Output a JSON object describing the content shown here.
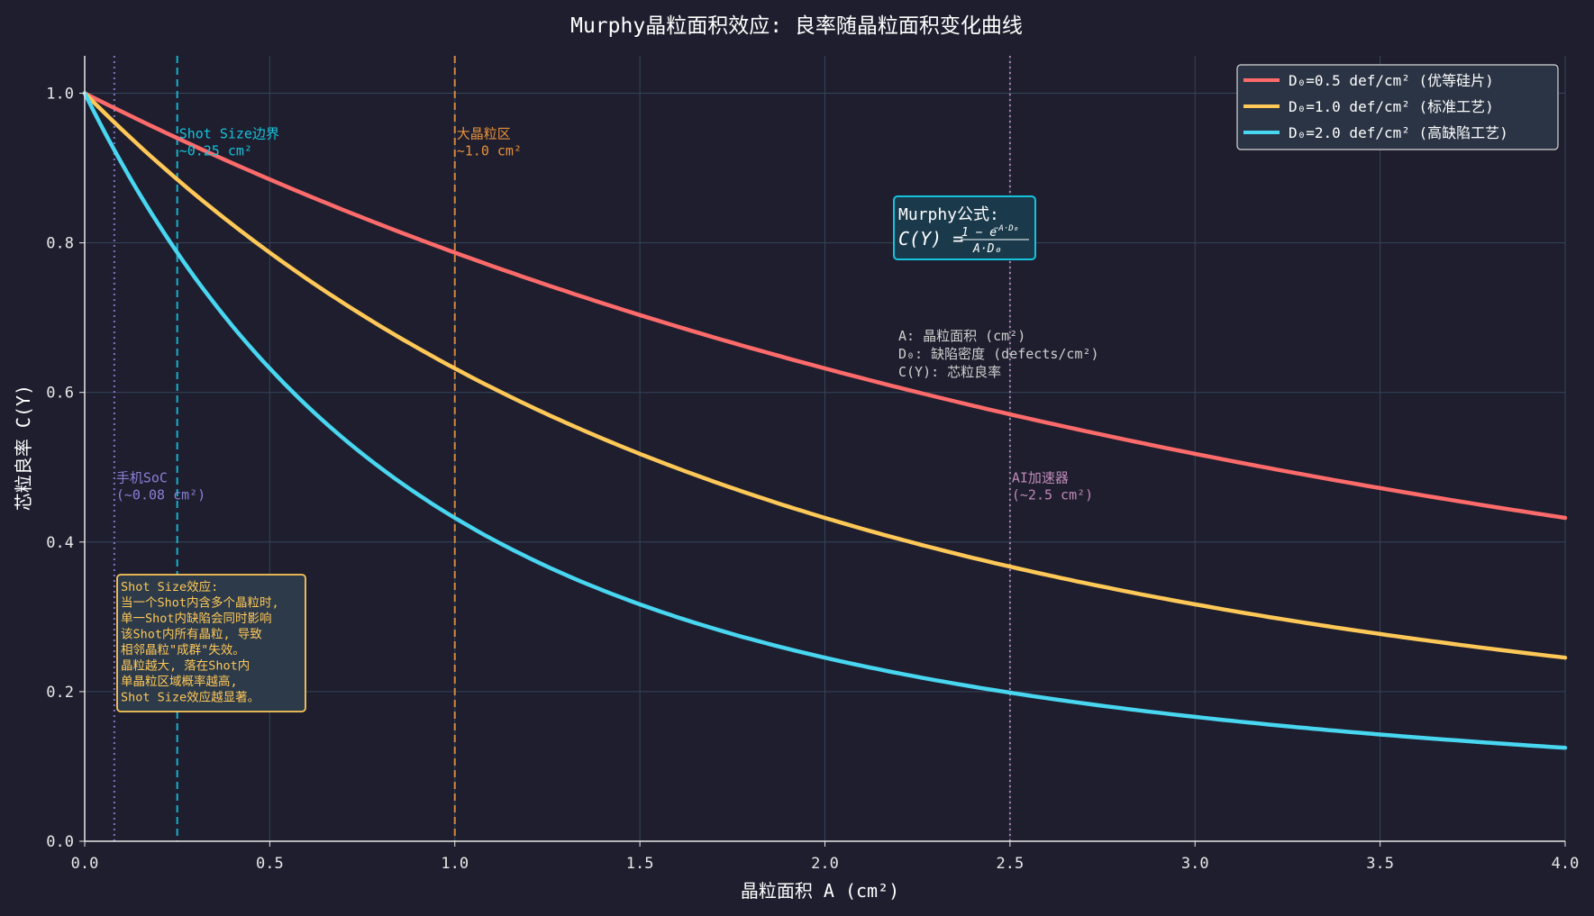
{
  "chart_data": {
    "type": "line",
    "title": "Murphy晶粒面积效应: 良率随晶粒面积变化曲线",
    "xlabel": "晶粒面积 A (cm²)",
    "ylabel": "芯粒良率 C(Y)",
    "xlim": [
      0,
      4
    ],
    "ylim": [
      0,
      1.05
    ],
    "xticks": [
      "0.0",
      "0.5",
      "1.0",
      "1.5",
      "2.0",
      "2.5",
      "3.0",
      "3.5",
      "4.0"
    ],
    "yticks": [
      "0.0",
      "0.2",
      "0.4",
      "0.6",
      "0.8",
      "1.0"
    ],
    "grid": true,
    "legend_position": "top-right",
    "series": [
      {
        "name": "D₀=0.5 def/cm² (优等硅片)",
        "color": "#ff6b6b",
        "D0": 0.5,
        "x": [
          0,
          0.25,
          0.5,
          1.0,
          1.5,
          2.0,
          2.5,
          3.0,
          3.5,
          4.0
        ],
        "y": [
          1.0,
          0.94,
          0.885,
          0.787,
          0.703,
          0.632,
          0.57,
          0.518,
          0.472,
          0.432
        ]
      },
      {
        "name": "D₀=1.0 def/cm² (标准工艺)",
        "color": "#ffc857",
        "D0": 1.0,
        "x": [
          0,
          0.25,
          0.5,
          1.0,
          1.5,
          2.0,
          2.5,
          3.0,
          3.5,
          4.0
        ],
        "y": [
          1.0,
          0.885,
          0.787,
          0.632,
          0.518,
          0.432,
          0.367,
          0.317,
          0.277,
          0.245
        ]
      },
      {
        "name": "D₀=2.0 def/cm² (高缺陷工艺)",
        "color": "#48d6f0",
        "D0": 2.0,
        "x": [
          0,
          0.25,
          0.5,
          1.0,
          1.5,
          2.0,
          2.5,
          3.0,
          3.5,
          4.0
        ],
        "y": [
          1.0,
          0.787,
          0.632,
          0.432,
          0.317,
          0.245,
          0.197,
          0.166,
          0.142,
          0.125
        ]
      }
    ],
    "vlines": [
      {
        "x": 0.08,
        "color": "#8a7fd6",
        "style": "dotted",
        "label_lines": [
          "手机SoC",
          "(~0.08 cm²)"
        ],
        "label_y": 0.48
      },
      {
        "x": 0.25,
        "color": "#16c3dc",
        "style": "dashed",
        "label_lines": [
          "Shot Size边界",
          "~0.25 cm²"
        ],
        "label_y": 0.94
      },
      {
        "x": 1.0,
        "color": "#e8913a",
        "style": "dashed",
        "label_lines": [
          "大晶粒区",
          "~1.0 cm²"
        ],
        "label_y": 0.94
      },
      {
        "x": 2.5,
        "color": "#c08ab8",
        "style": "dotted",
        "label_lines": [
          "AI加速器",
          "(~2.5 cm²)"
        ],
        "label_y": 0.48
      }
    ],
    "formula_box": {
      "title": "Murphy公式:",
      "lhs": "C(Y) =",
      "numerator": "1 − e",
      "exponent": "−A·D₀",
      "denominator": "A·D₀",
      "color": "#16c3dc"
    },
    "legend_notes": [
      "A: 晶粒面积 (cm²)",
      "D₀: 缺陷密度 (defects/cm²)",
      "C(Y): 芯粒良率"
    ],
    "shot_note": {
      "lines": [
        "Shot Size效应:",
        "当一个Shot内含多个晶粒时,",
        "单一Shot内缺陷会同时影响",
        "该Shot内所有晶粒, 导致",
        "相邻晶粒\"成群\"失效。",
        "晶粒越大, 落在Shot内",
        "单晶粒区域概率越高,",
        "Shot Size效应越显著。"
      ],
      "color": "#ffc857"
    }
  }
}
